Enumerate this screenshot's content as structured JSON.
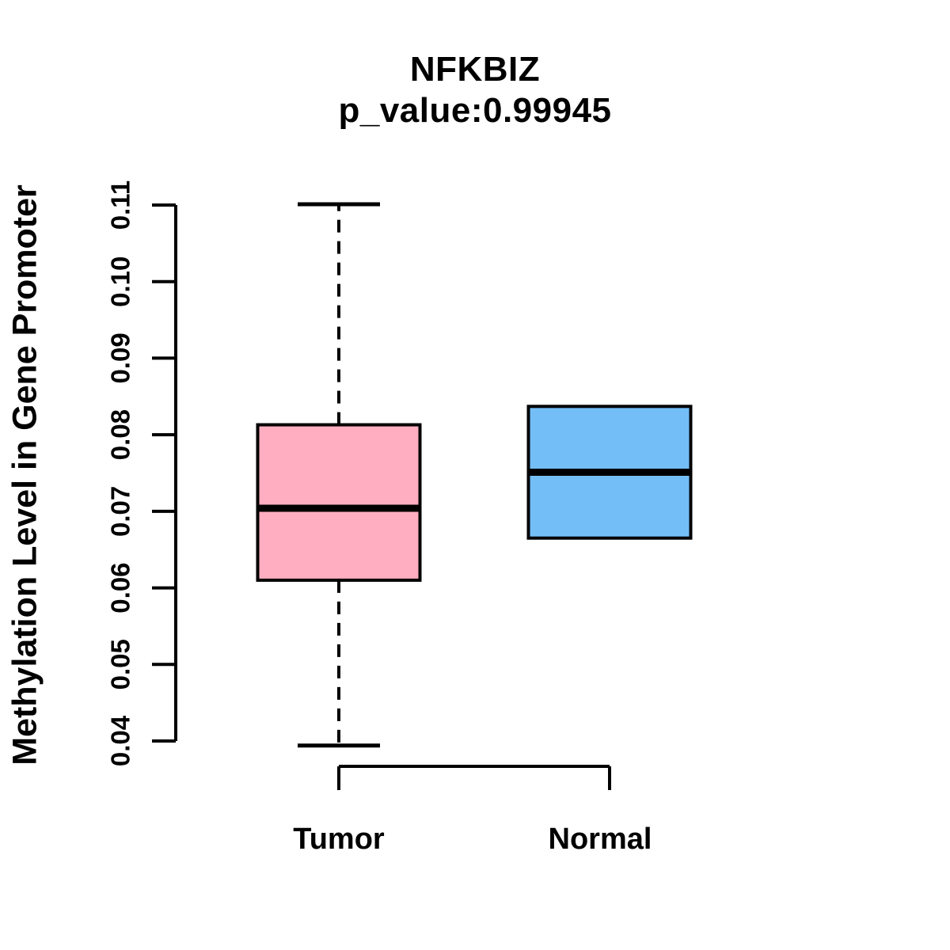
{
  "chart_data": {
    "type": "boxplot",
    "title": "NFKBIZ",
    "subtitle": "p_value:0.99945",
    "ylabel": "Methylation Level in Gene Promoter",
    "xlabel": "",
    "ylim": [
      0.04,
      0.11
    ],
    "yticks": [
      "0.04",
      "0.05",
      "0.06",
      "0.07",
      "0.08",
      "0.09",
      "0.10",
      "0.11"
    ],
    "categories": [
      "Tumor",
      "Normal"
    ],
    "series": [
      {
        "name": "Tumor",
        "fill_color": "#FEAEC0",
        "whisker_low": 0.0394,
        "q1": 0.061,
        "median": 0.0704,
        "q3": 0.0813,
        "whisker_high": 0.1101,
        "whiskers_visible": true
      },
      {
        "name": "Normal",
        "fill_color": "#74BEF8",
        "whisker_low": 0.0665,
        "q1": 0.0665,
        "median": 0.0751,
        "q3": 0.0837,
        "whisker_high": 0.0837,
        "whiskers_visible": false
      }
    ],
    "line_color": "#000000",
    "background_color": "#FFFFFF",
    "legend": "none",
    "grid": false
  }
}
